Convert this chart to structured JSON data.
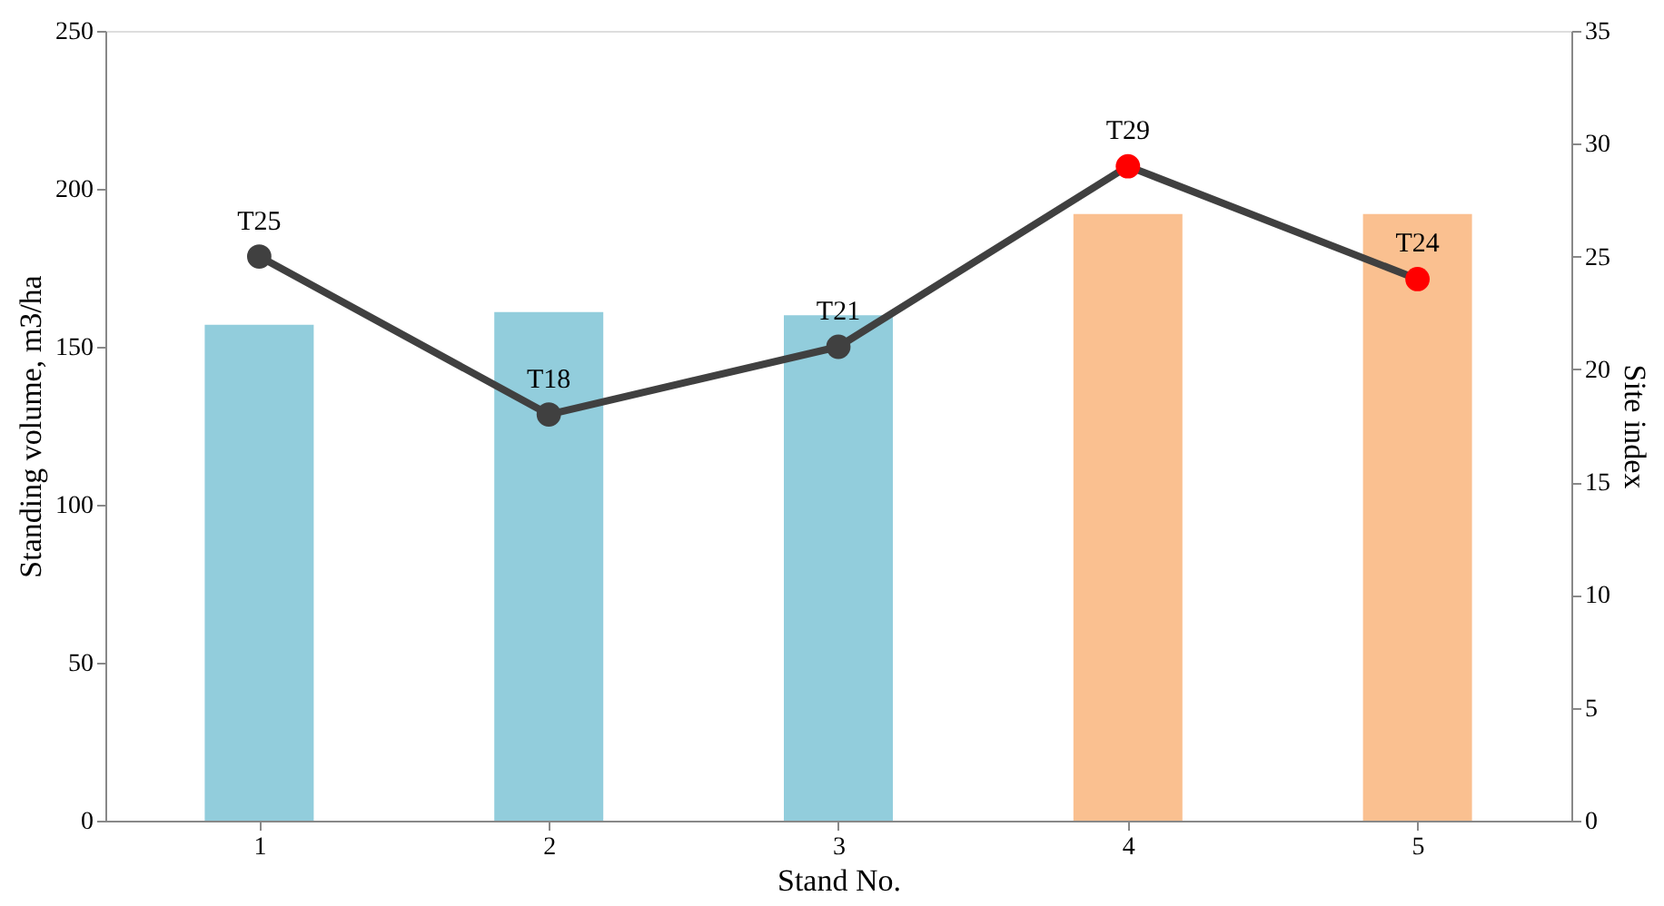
{
  "chart_data": {
    "type": "bar",
    "xlabel": "Stand No.",
    "ylabel": "Standing volume,  m3/ha",
    "y2label": "Site index",
    "categories": [
      "1",
      "2",
      "3",
      "4",
      "5"
    ],
    "series": [
      {
        "values": [
          157,
          161,
          160,
          192,
          192
        ],
        "colors": [
          "#92cddc",
          "#92cddc",
          "#92cddc",
          "#fac090",
          "#fac090"
        ]
      },
      {
        "type": "line",
        "axis": "y2",
        "values": [
          25,
          18,
          21,
          29,
          24
        ],
        "value_labels": [
          "T25",
          "T18",
          "T21",
          "T29",
          "T24"
        ],
        "color": "#404040",
        "colors": [
          "#404040",
          "#404040",
          "#404040",
          "#ff0000",
          "#ff0000"
        ],
        "marker": "circle",
        "line_style": "solid"
      }
    ],
    "ylim": [
      0,
      250
    ],
    "yticks": [
      0,
      50,
      100,
      150,
      200,
      250
    ],
    "y2lim": [
      0,
      35
    ],
    "y2ticks": [
      0,
      5,
      10,
      15,
      20,
      25,
      30,
      35
    ],
    "grid": false
  }
}
